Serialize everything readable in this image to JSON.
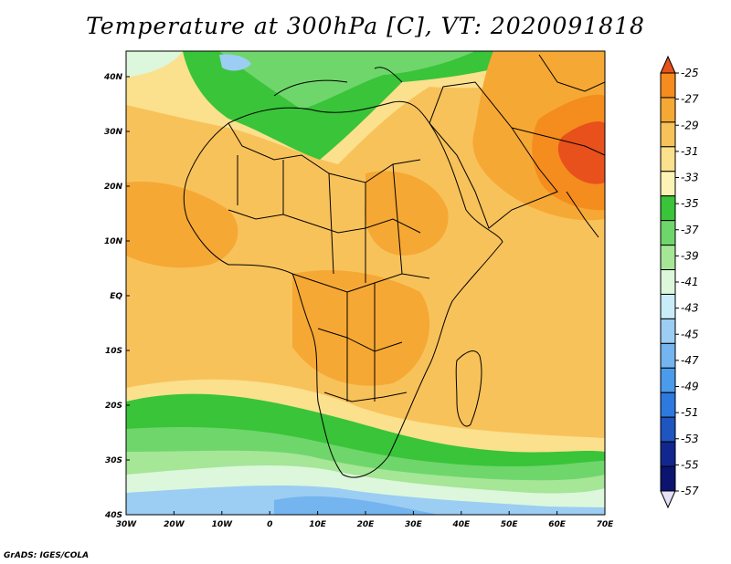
{
  "title": "Temperature at 300hPa [C], VT: 2020091818",
  "footer": "GrADS: IGES/COLA",
  "map": {
    "lon_range": [
      -30,
      75
    ],
    "lat_range": [
      -40,
      45
    ],
    "lon_ticks": [
      "30W",
      "20W",
      "10W",
      "0",
      "10E",
      "20E",
      "30E",
      "40E",
      "50E",
      "60E",
      "70E"
    ],
    "lat_ticks": [
      "40N",
      "30N",
      "20N",
      "10N",
      "EQ",
      "10S",
      "20S",
      "30S",
      "40S"
    ]
  },
  "colorbar": {
    "labels": [
      "-25",
      "-27",
      "-29",
      "-31",
      "-33",
      "-35",
      "-37",
      "-39",
      "-41",
      "-43",
      "-45",
      "-47",
      "-49",
      "-51",
      "-53",
      "-55",
      "-57"
    ],
    "colors": [
      "#e8501c",
      "#f58c1e",
      "#f6a834",
      "#f8c25a",
      "#fbe08d",
      "#fcf4b4",
      "#39c43a",
      "#6fd66b",
      "#a5e697",
      "#dcf7dc",
      "#c8ecf8",
      "#9ccdf3",
      "#74b4ef",
      "#4a9bea",
      "#2e79de",
      "#1e55c0",
      "#12278e",
      "#0c1470",
      "#e6e0f8"
    ]
  }
}
